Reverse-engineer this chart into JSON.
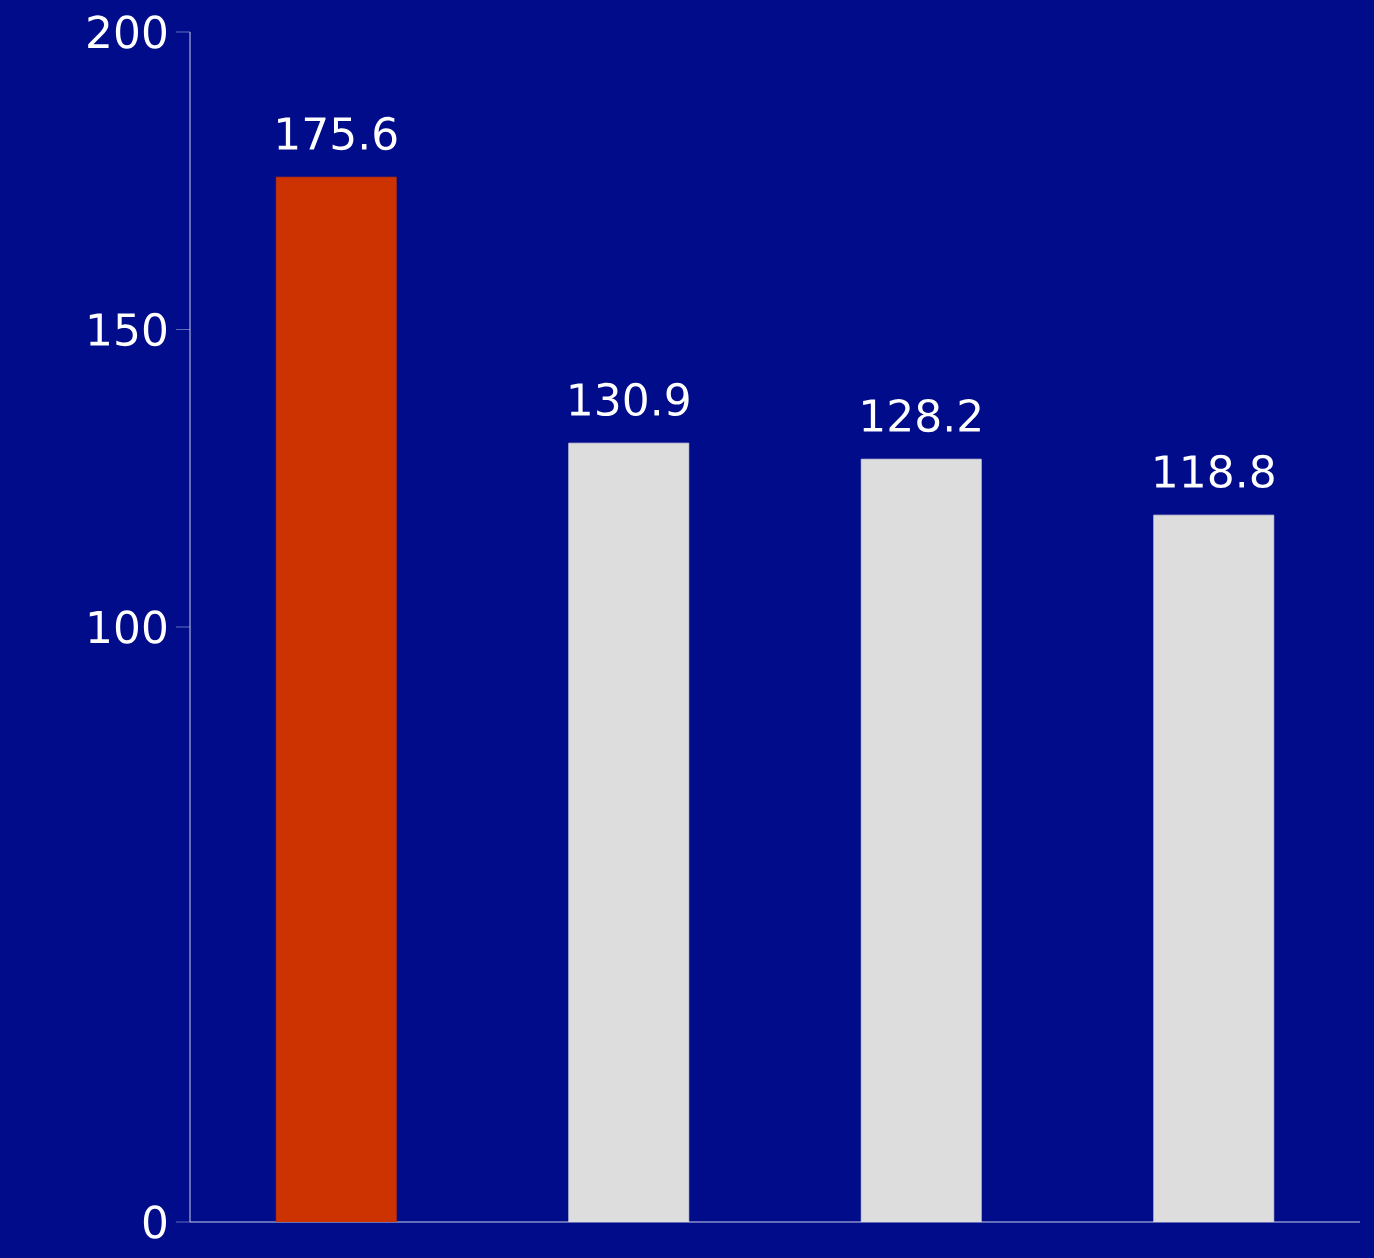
{
  "chart_data": {
    "type": "bar",
    "categories": [
      null,
      null,
      null,
      null
    ],
    "values": [
      175.6,
      130.9,
      128.2,
      118.8
    ],
    "colors": [
      "#cc3300",
      "#dddddd",
      "#dddddd",
      "#dddddd"
    ],
    "ylim": [
      0,
      200
    ],
    "yticks": [
      0,
      100,
      150,
      200
    ],
    "data_labels": true
  }
}
